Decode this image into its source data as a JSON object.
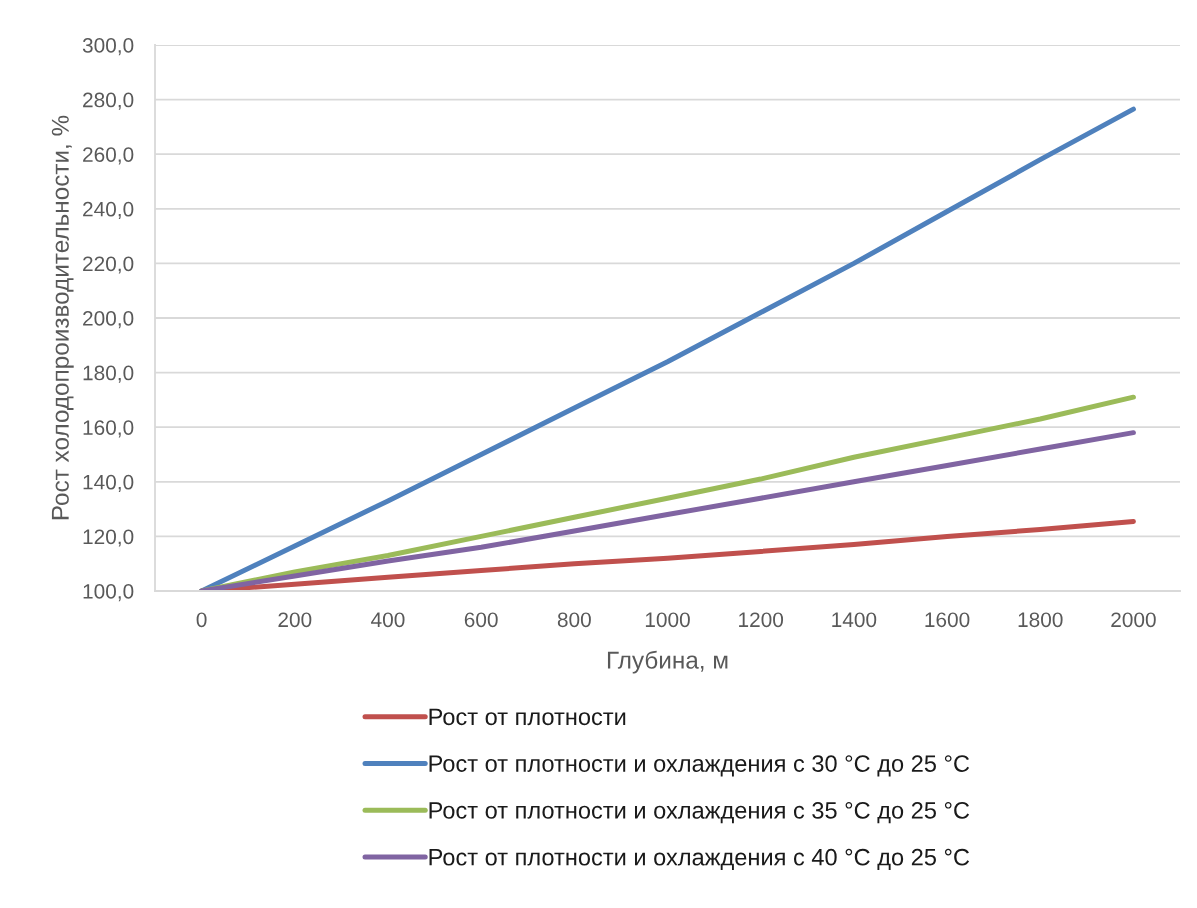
{
  "chart_data": {
    "type": "line",
    "xlabel": "Глубина, м",
    "ylabel": "Рост холодопроизводительности, %",
    "categories": [
      "0",
      "200",
      "400",
      "600",
      "800",
      "1000",
      "1200",
      "1400",
      "1600",
      "1800",
      "2000"
    ],
    "series": [
      {
        "name": "Рост от плотности",
        "color": "#c0504d",
        "values": [
          100,
          102.5,
          105,
          107.5,
          110,
          112,
          114.5,
          117,
          120,
          122.5,
          125.5
        ]
      },
      {
        "name": "Рост от плотности и охлаждения с 30 °C до 25 °C",
        "color": "#4f81bd",
        "values": [
          100,
          116.5,
          133,
          150,
          167,
          184,
          202,
          220,
          239,
          258,
          276.5
        ]
      },
      {
        "name": "Рост от плотности и охлаждения с 35 °C до 25 °C",
        "color": "#9bbb59",
        "values": [
          100,
          107,
          113,
          120,
          127,
          134,
          141,
          149,
          156,
          163,
          171
        ]
      },
      {
        "name": "Рост от плотности и охлаждения с 40 °C до 25 °C",
        "color": "#8064a2",
        "values": [
          100,
          105.5,
          111,
          116,
          122,
          128,
          134,
          140,
          146,
          152,
          158
        ]
      }
    ],
    "ylim": [
      100,
      300
    ],
    "yticks": [
      {
        "value": 100,
        "label": "100,0"
      },
      {
        "value": 120,
        "label": "120,0"
      },
      {
        "value": 140,
        "label": "140,0"
      },
      {
        "value": 160,
        "label": "160,0"
      },
      {
        "value": 180,
        "label": "180,0"
      },
      {
        "value": 200,
        "label": "200,0"
      },
      {
        "value": 220,
        "label": "220,0"
      },
      {
        "value": 240,
        "label": "240,0"
      },
      {
        "value": 260,
        "label": "260,0"
      },
      {
        "value": 280,
        "label": "280,0"
      },
      {
        "value": 300,
        "label": "300,0"
      }
    ],
    "grid": "y",
    "legend": "bottom"
  }
}
